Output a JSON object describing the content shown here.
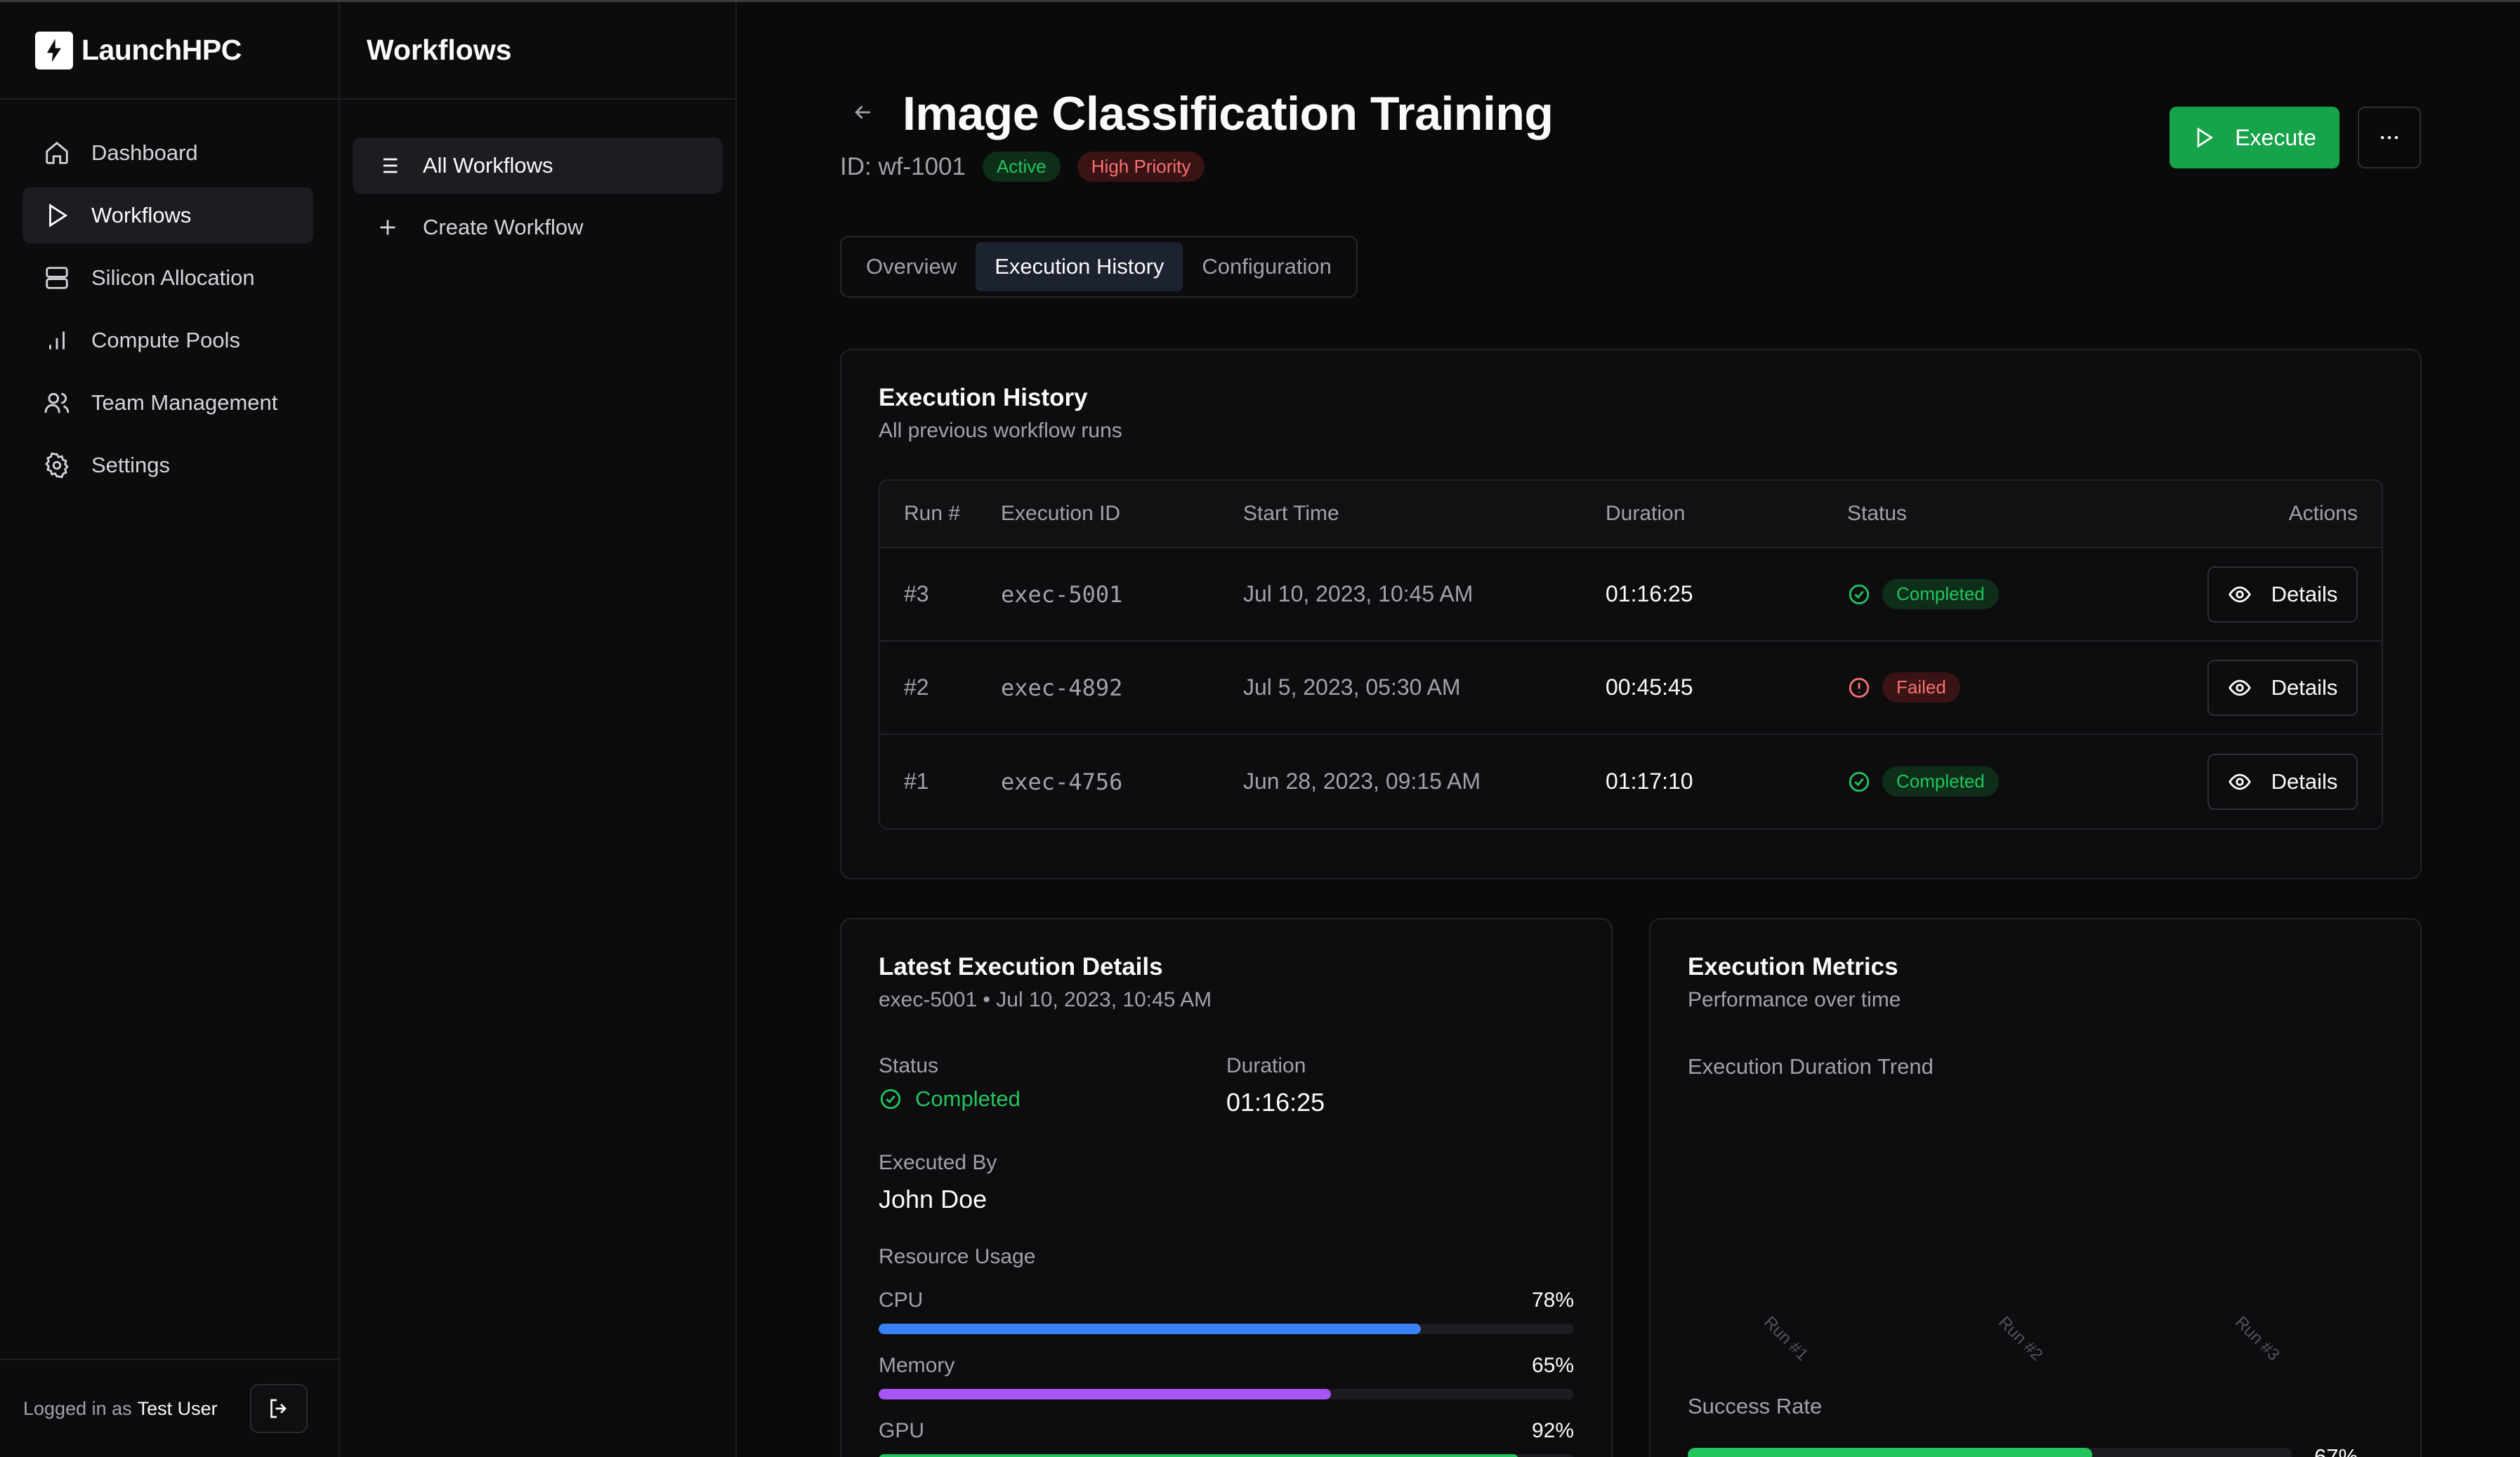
{
  "brand": {
    "name": "LaunchHPC"
  },
  "nav": {
    "items": [
      {
        "label": "Dashboard",
        "icon": "home-icon",
        "active": false
      },
      {
        "label": "Workflows",
        "icon": "play-icon",
        "active": true
      },
      {
        "label": "Silicon Allocation",
        "icon": "server-icon",
        "active": false
      },
      {
        "label": "Compute Pools",
        "icon": "bar-chart-icon",
        "active": false
      },
      {
        "label": "Team Management",
        "icon": "users-icon",
        "active": false
      },
      {
        "label": "Settings",
        "icon": "gear-icon",
        "active": false
      }
    ]
  },
  "footer": {
    "prefix": "Logged in as",
    "user": "Test User"
  },
  "subbar": {
    "title": "Workflows",
    "items": [
      {
        "label": "All Workflows",
        "active": true
      },
      {
        "label": "Create Workflow",
        "active": false
      }
    ]
  },
  "header": {
    "title": "Image Classification Training",
    "id_label": "ID: wf-1001",
    "badge_active": "Active",
    "badge_priority": "High Priority",
    "execute_label": "Execute",
    "more_label": "···"
  },
  "tabs": {
    "overview": "Overview",
    "history": "Execution History",
    "config": "Configuration"
  },
  "history": {
    "title": "Execution History",
    "subtitle": "All previous workflow runs",
    "columns": {
      "run": "Run #",
      "exec_id": "Execution ID",
      "start": "Start Time",
      "duration": "Duration",
      "status": "Status",
      "actions": "Actions"
    },
    "rows": [
      {
        "run": "#3",
        "exec_id": "exec-5001",
        "start": "Jul 10, 2023, 10:45 AM",
        "duration": "01:16:25",
        "status": "Completed",
        "action": "Details"
      },
      {
        "run": "#2",
        "exec_id": "exec-4892",
        "start": "Jul 5, 2023, 05:30 AM",
        "duration": "00:45:45",
        "status": "Failed",
        "action": "Details"
      },
      {
        "run": "#1",
        "exec_id": "exec-4756",
        "start": "Jun 28, 2023, 09:15 AM",
        "duration": "01:17:10",
        "status": "Completed",
        "action": "Details"
      }
    ]
  },
  "latest": {
    "title": "Latest Execution Details",
    "subtitle": "exec-5001 • Jul 10, 2023, 10:45 AM",
    "status_label": "Status",
    "status_value": "Completed",
    "duration_label": "Duration",
    "duration_value": "01:16:25",
    "executed_by_label": "Executed By",
    "executed_by_value": "John Doe",
    "resource_title": "Resource Usage",
    "resources": [
      {
        "label": "CPU",
        "pct_text": "78%",
        "pct": 78,
        "color": "#3b82f6"
      },
      {
        "label": "Memory",
        "pct_text": "65%",
        "pct": 65,
        "color": "#a855f7"
      },
      {
        "label": "GPU",
        "pct_text": "92%",
        "pct": 92,
        "color": "#22c55e"
      }
    ]
  },
  "metrics": {
    "title": "Execution Metrics",
    "subtitle": "Performance over time",
    "trend_label": "Execution Duration Trend",
    "x_labels": [
      "Run #1",
      "Run #2",
      "Run #3"
    ],
    "success_label": "Success Rate",
    "success_pct": 67,
    "success_text": "67%"
  },
  "colors": {
    "accent": "#16a34a",
    "success": "#22c55e",
    "danger": "#f87171"
  }
}
